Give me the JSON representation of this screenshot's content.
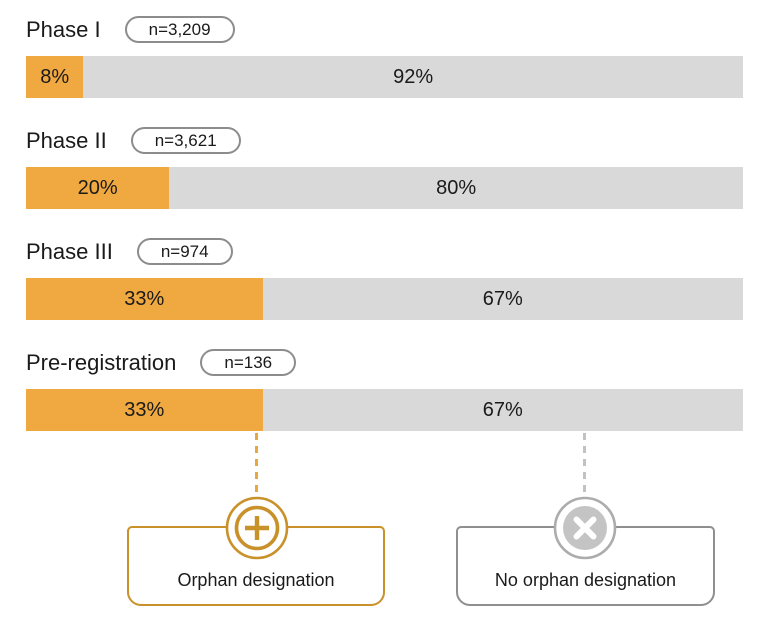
{
  "chart_data": {
    "type": "bar",
    "orientation": "horizontal_stacked",
    "categories": [
      "Phase I",
      "Phase II",
      "Phase III",
      "Pre-registration"
    ],
    "sample_sizes": [
      "n=3,209",
      "n=3,621",
      "n=974",
      "n=136"
    ],
    "series": [
      {
        "name": "Orphan designation",
        "values": [
          8,
          20,
          33,
          33
        ],
        "color": "#f0a840"
      },
      {
        "name": "No orphan designation",
        "values": [
          92,
          80,
          67,
          67
        ],
        "color": "#d9d9d9"
      }
    ],
    "value_unit": "%",
    "xlim": [
      0,
      100
    ],
    "grid": false,
    "legend_position": "bottom"
  },
  "rows": [
    {
      "label": "Phase I",
      "n": "n=3,209",
      "orphan_pct": 8,
      "orphan_label": "8%",
      "no_orphan_pct": 92,
      "no_orphan_label": "92%"
    },
    {
      "label": "Phase II",
      "n": "n=3,621",
      "orphan_pct": 20,
      "orphan_label": "20%",
      "no_orphan_pct": 80,
      "no_orphan_label": "80%"
    },
    {
      "label": "Phase III",
      "n": "n=974",
      "orphan_pct": 33,
      "orphan_label": "33%",
      "no_orphan_pct": 67,
      "no_orphan_label": "67%"
    },
    {
      "label": "Pre-registration",
      "n": "n=136",
      "orphan_pct": 33,
      "orphan_label": "33%",
      "no_orphan_pct": 67,
      "no_orphan_label": "67%"
    }
  ],
  "legend": {
    "orphan": {
      "label": "Orphan designation",
      "icon": "plus-circle-icon",
      "accent_color": "#c9912a"
    },
    "no_orphan": {
      "label": "No orphan designation",
      "icon": "x-circle-icon",
      "accent_color": "#8f8f8f"
    }
  },
  "colors": {
    "bar_orange": "#f0a840",
    "bar_gray": "#d9d9d9",
    "legend_orange_border": "#c9912a",
    "legend_gray_border": "#8f8f8f",
    "dashed_orange": "#e9a83e",
    "dashed_gray": "#c2c2c2",
    "pill_border": "#8c8c8c",
    "text": "#1a1a1a"
  }
}
